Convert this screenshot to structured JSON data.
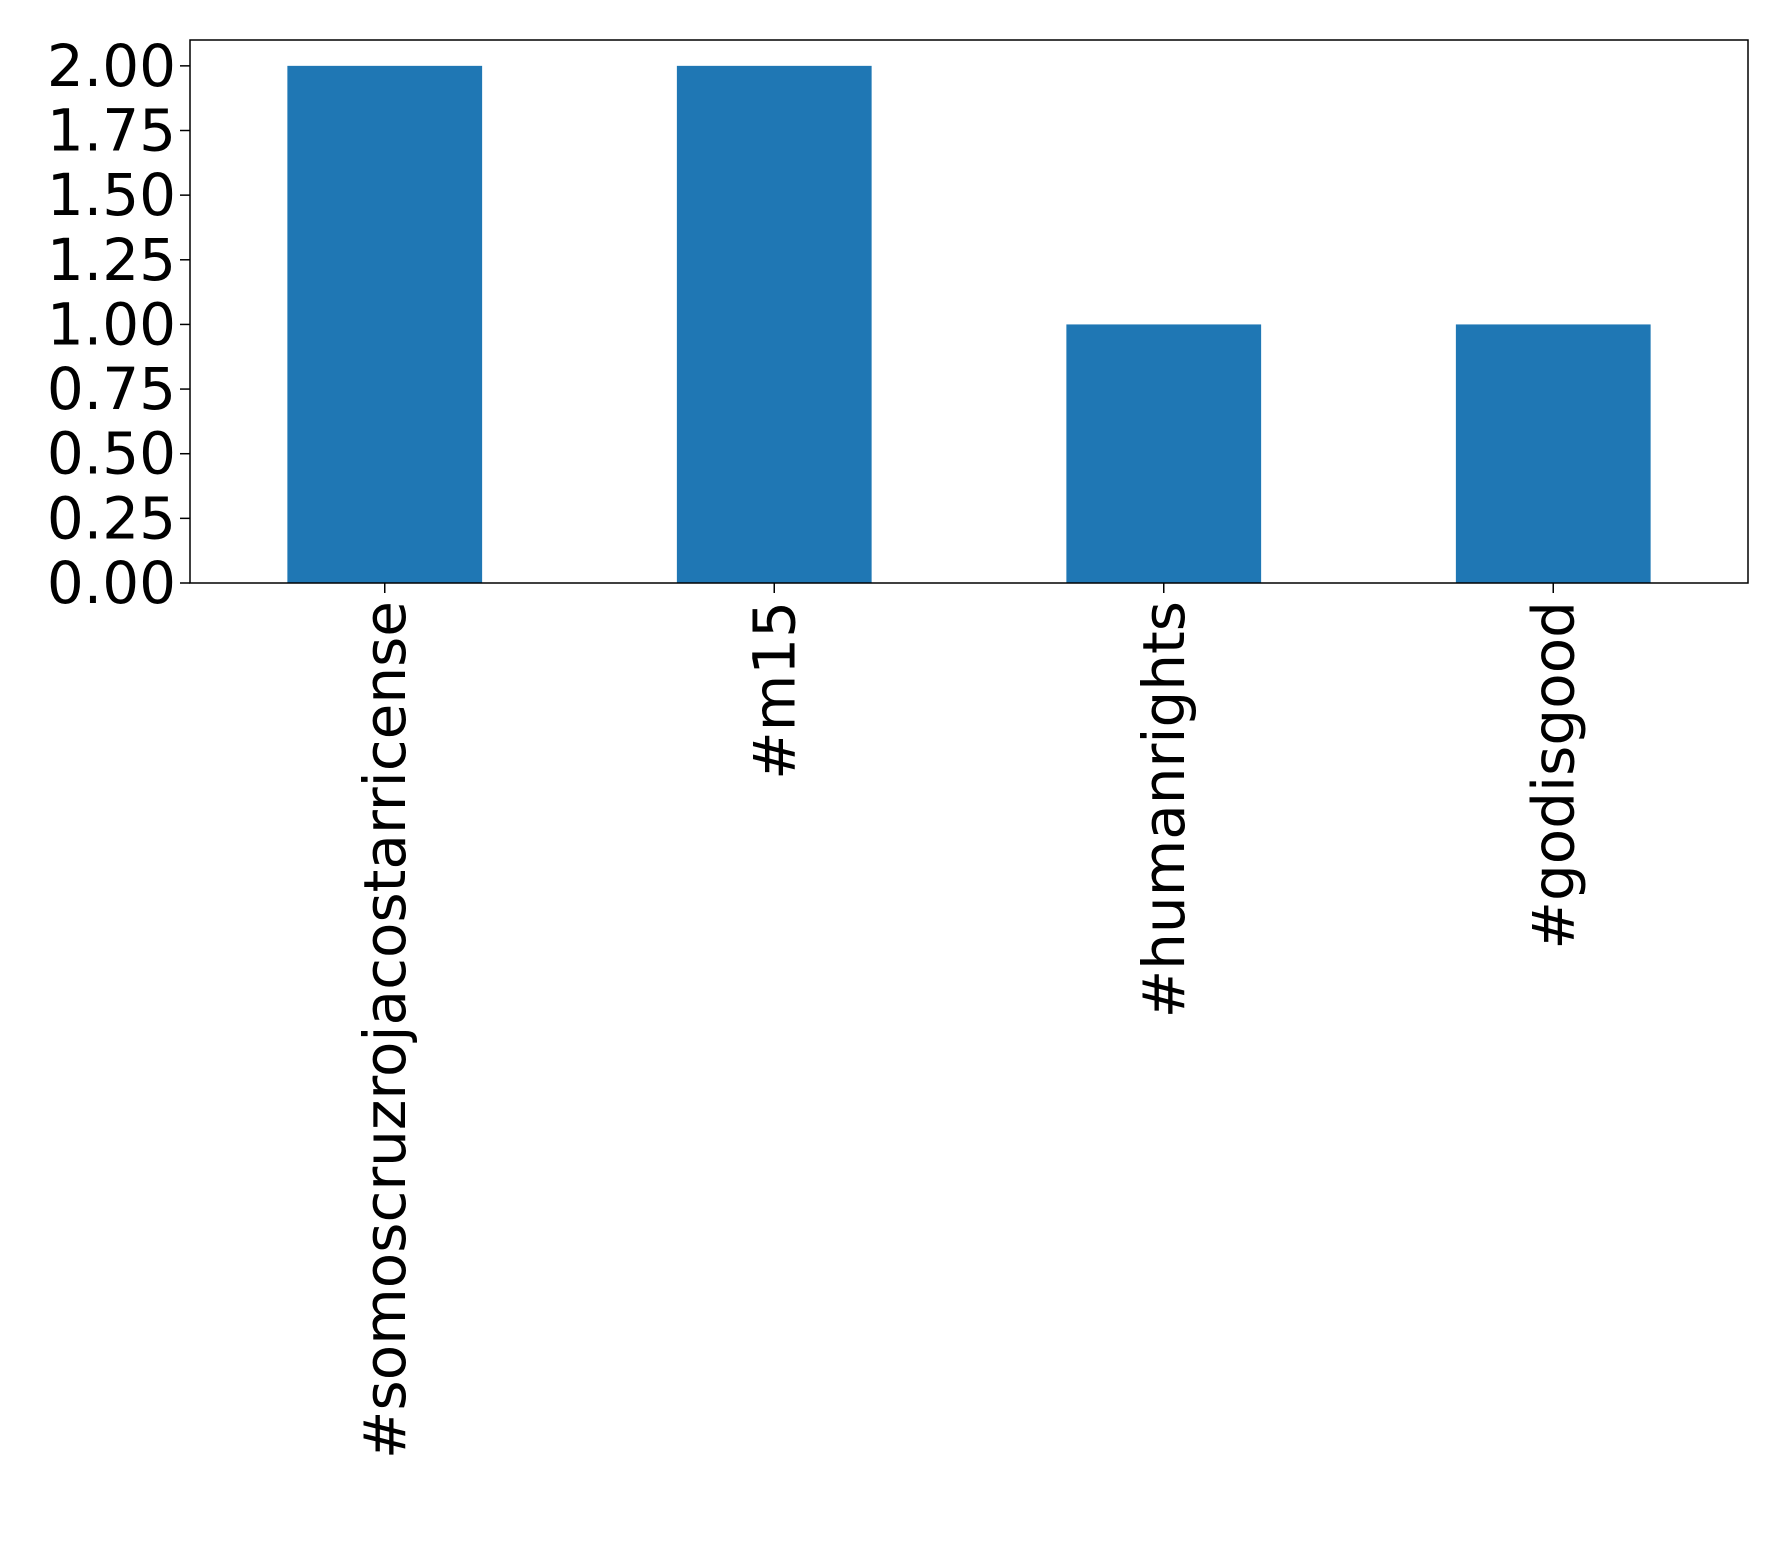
{
  "chart_data": {
    "type": "bar",
    "categories": [
      "#somoscruzrojacostarricense",
      "#m15",
      "#humanrights",
      "#godisgood"
    ],
    "values": [
      2,
      2,
      1,
      1
    ],
    "title": "",
    "xlabel": "",
    "ylabel": "",
    "ylim": [
      0,
      2.1
    ],
    "yticks": [
      "0.00",
      "0.25",
      "0.50",
      "0.75",
      "1.00",
      "1.25",
      "1.50",
      "1.75",
      "2.00"
    ],
    "grid": false,
    "bar_color": "#1f77b4"
  }
}
